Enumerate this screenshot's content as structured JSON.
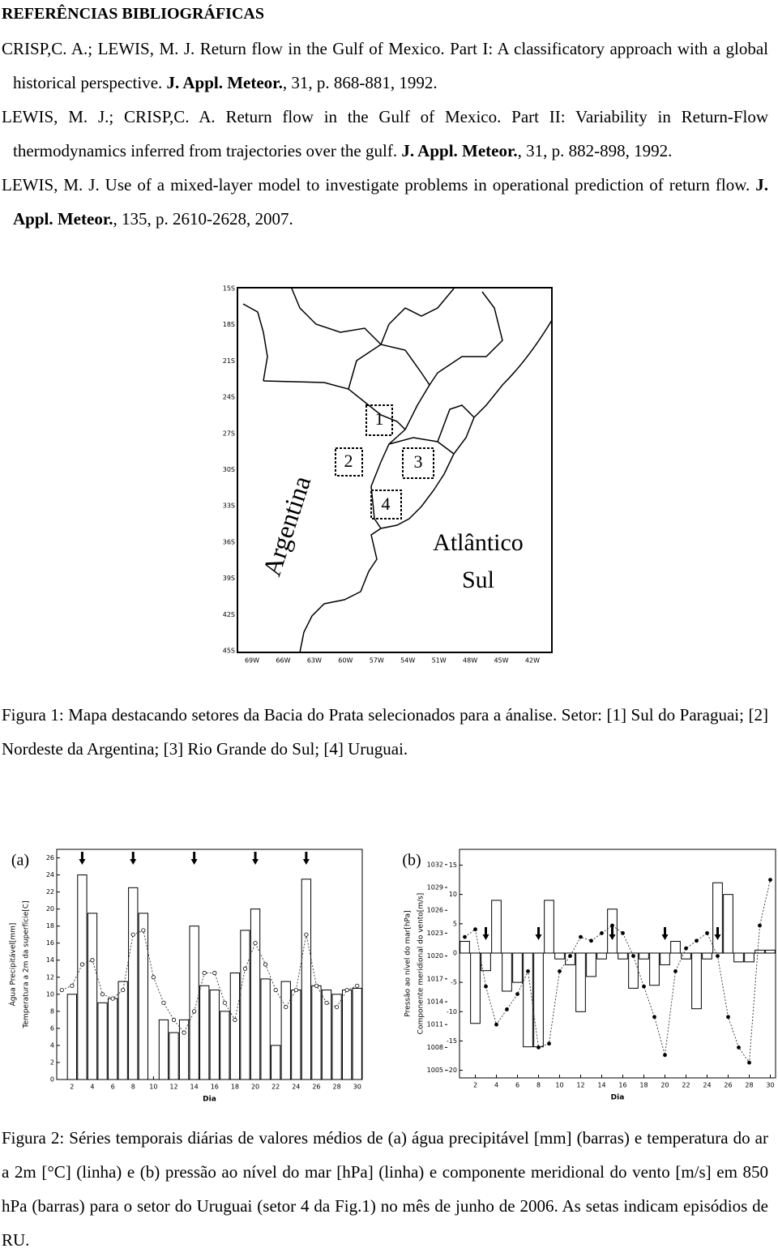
{
  "references": {
    "title": "REFERÊNCIAS BIBLIOGRÁFICAS",
    "items": [
      {
        "text": "CRISP,C. A.; LEWIS, M. J. Return flow in the Gulf of Mexico. Part I: A classificatory approach with a global historical perspective. ",
        "journal": "J. Appl. Meteor.",
        "details": ", 31, p. 868-881, 1992."
      },
      {
        "text": "LEWIS, M. J.; CRISP,C. A. Return flow in the Gulf of Mexico. Part II: Variability in Return-Flow thermodynamics inferred from trajectories over the gulf. ",
        "journal": "J. Appl. Meteor.",
        "details": ", 31, p. 882-898, 1992."
      },
      {
        "text": "LEWIS, M. J. Use of a mixed-layer model to investigate problems in operational prediction of return flow. ",
        "journal": "J. Appl. Meteor.",
        "details": ", 135, p. 2610-2628, 2007."
      }
    ]
  },
  "figure1": {
    "lat_labels": [
      "15S",
      "18S",
      "21S",
      "24S",
      "27S",
      "30S",
      "33S",
      "36S",
      "39S",
      "42S",
      "45S"
    ],
    "lon_labels": [
      "69W",
      "66W",
      "63W",
      "60W",
      "57W",
      "54W",
      "51W",
      "48W",
      "45W",
      "42W"
    ],
    "sectors": [
      "1",
      "2",
      "3",
      "4"
    ],
    "country": "Argentina",
    "ocean": [
      "Atlântico",
      "Sul"
    ],
    "caption": "Figura 1: Mapa destacando setores da Bacia do Prata selecionados para a ánalise. Setor: [1] Sul do Paraguai; [2] Nordeste da Argentina; [3] Rio Grande do Sul; [4] Uruguai."
  },
  "figure2": {
    "charts": [
      {
        "type": "bar_line",
        "panel": "(a)",
        "ylabels": [
          "Água Precipitável[mm]",
          "Temperatura a 2m da superfície[C]"
        ],
        "xlabel": "Dia",
        "x": [
          1,
          2,
          3,
          4,
          5,
          6,
          7,
          8,
          9,
          10,
          11,
          12,
          13,
          14,
          15,
          16,
          17,
          18,
          19,
          20,
          21,
          22,
          23,
          24,
          25,
          26,
          27,
          28,
          29,
          30
        ],
        "xlim": [
          0.5,
          30.5
        ],
        "xticks": [
          2,
          4,
          6,
          8,
          10,
          12,
          14,
          16,
          18,
          20,
          22,
          24,
          26,
          28,
          30
        ],
        "ylim": [
          0,
          27
        ],
        "yticks": [
          0,
          2,
          4,
          6,
          8,
          10,
          12,
          14,
          16,
          18,
          20,
          22,
          24,
          26
        ],
        "bars": [
          null,
          10,
          24,
          19.5,
          9,
          9.5,
          11.5,
          22.5,
          19.5,
          null,
          7,
          5.5,
          7,
          18,
          11,
          10.5,
          8,
          12.5,
          17.5,
          20,
          11.8,
          4,
          11.5,
          10.5,
          23.5,
          11,
          10.5,
          10,
          10.5,
          10.7
        ],
        "line_axis": "y",
        "marker": "open",
        "line": [
          10.5,
          11,
          13.5,
          14,
          10,
          9.5,
          10.5,
          17,
          17.5,
          12,
          9,
          7,
          5.5,
          8,
          12.5,
          12.5,
          9,
          7,
          13,
          16,
          13.5,
          10.5,
          8.5,
          10.5,
          17,
          11,
          9,
          8.5,
          10.5,
          11
        ],
        "arrows": [
          3,
          8,
          14,
          20,
          25
        ]
      },
      {
        "type": "bar_line",
        "panel": "(b)",
        "ylabels": [
          "Pressão ao nível do mar[hPa]",
          "Componente meridional do vento[m/s]"
        ],
        "xlabel": "Dia",
        "x": [
          1,
          2,
          3,
          4,
          5,
          6,
          7,
          8,
          9,
          10,
          11,
          12,
          13,
          14,
          15,
          16,
          17,
          18,
          19,
          20,
          21,
          22,
          23,
          24,
          25,
          26,
          27,
          28,
          29,
          30
        ],
        "xlim": [
          0.5,
          30.5
        ],
        "xticks": [
          2,
          4,
          6,
          8,
          10,
          12,
          14,
          16,
          18,
          20,
          22,
          24,
          26,
          28,
          30
        ],
        "ylim": [
          -21.3,
          17.7
        ],
        "yticks": [
          -20,
          -15,
          -10,
          -5,
          0,
          5,
          10,
          15
        ],
        "y2lim": [
          1004,
          1034
        ],
        "y2ticks": [
          1005,
          1008,
          1011,
          1014,
          1017,
          1020,
          1023,
          1026,
          1029,
          1032
        ],
        "bars": [
          2,
          -12,
          -3,
          9,
          -6.5,
          -5,
          -16,
          -16,
          9,
          -1,
          -2,
          -10,
          -4,
          -1,
          7.5,
          -1,
          -6,
          -1,
          -5.5,
          -2,
          2,
          -1,
          -9.5,
          -1,
          12,
          10,
          -1.5,
          -1.5,
          0.5,
          0.5
        ],
        "line_axis": "y2",
        "marker": "filled",
        "line": [
          1022.5,
          1023.5,
          1016,
          1011,
          1013,
          1015,
          1018,
          1008,
          1008.5,
          1018,
          1020,
          1022.5,
          1022,
          1023,
          1024,
          1023,
          1020,
          1016,
          1012,
          1007,
          1018,
          1021,
          1022,
          1023,
          1020,
          1012,
          1008,
          1006,
          1024,
          1030
        ],
        "arrows": [
          3,
          8,
          15,
          20,
          25
        ]
      }
    ],
    "caption": "Figura 2: Séries temporais diárias de valores médios de (a) água precipitável [mm] (barras) e temperatura do ar a 2m [°C] (linha) e (b) pressão ao nível do mar [hPa] (linha) e componente meridional do vento [m/s] em 850 hPa (barras) para o setor do Uruguai (setor 4 da Fig.1) no mês de junho de 2006. As setas indicam episódios de RU."
  }
}
